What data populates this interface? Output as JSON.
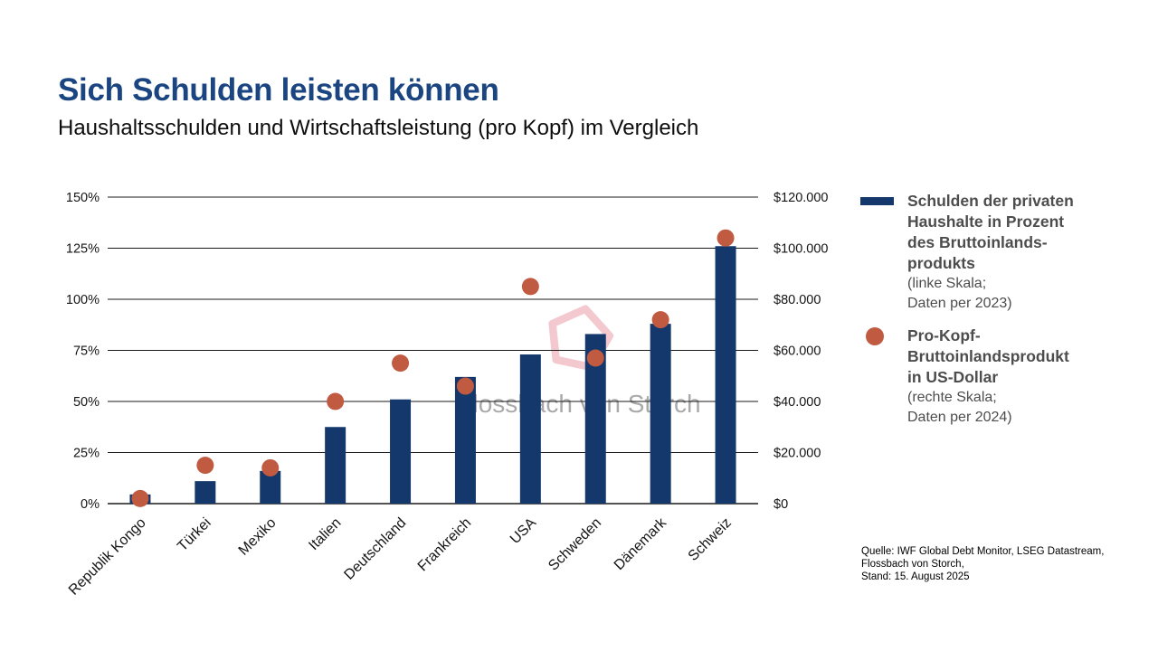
{
  "header": {
    "title": "Sich Schulden leisten können",
    "subtitle": "Haushaltsschulden und Wirtschaftsleistung (pro Kopf) im Vergleich"
  },
  "chart_data": {
    "type": "combo",
    "categories": [
      "Republik Kongo",
      "Türkei",
      "Mexiko",
      "Italien",
      "Deutschland",
      "Frankreich",
      "USA",
      "Schweden",
      "Dänemark",
      "Schweiz"
    ],
    "series": [
      {
        "name": "Schulden der privaten Haushalte in Prozent des Bruttoinlandsprodukts",
        "type": "bar",
        "axis": "left",
        "unit": "% des BIP",
        "values": [
          4.5,
          11,
          16,
          37.5,
          51,
          62,
          73,
          83,
          88,
          126
        ]
      },
      {
        "name": "Pro-Kopf-Bruttoinlandsprodukt in US-Dollar",
        "type": "scatter",
        "axis": "right",
        "unit": "USD",
        "values": [
          2000,
          15000,
          14000,
          40000,
          55000,
          46000,
          85000,
          57000,
          72000,
          104000
        ]
      }
    ],
    "left_axis": {
      "min": 0,
      "max": 150,
      "tick_values": [
        0,
        25,
        50,
        75,
        100,
        125,
        150
      ],
      "tick_labels": [
        "0%",
        "25%",
        "50%",
        "75%",
        "100%",
        "125%",
        "150%"
      ]
    },
    "right_axis": {
      "min": 0,
      "max": 120000,
      "tick_values": [
        0,
        20000,
        40000,
        60000,
        80000,
        100000,
        120000
      ],
      "tick_labels": [
        "$0",
        "$20.000",
        "$40.000",
        "$60.000",
        "$80.000",
        "$100.000",
        "$120.000"
      ]
    },
    "grid": true,
    "legend_position": "right",
    "x_label_rotation": -45
  },
  "legend": {
    "items": [
      {
        "swatch": "bar-swatch",
        "label_lines": [
          "Schulden der privaten",
          "Haushalte in Prozent",
          "des Bruttoinlands-",
          "produkts"
        ],
        "note_lines": [
          "(linke Skala;",
          "Daten per 2023)"
        ]
      },
      {
        "swatch": "dot-swatch",
        "label_lines": [
          "Pro-Kopf-",
          "Bruttoinlandsprodukt",
          "in US-Dollar"
        ],
        "note_lines": [
          "(rechte Skala;",
          "Daten per 2024)"
        ]
      }
    ]
  },
  "source": {
    "lines": [
      "Quelle: IWF Global Debt Monitor, LSEG Datastream,",
      "Flossbach von Storch,",
      "Stand: 15. August 2025"
    ]
  },
  "watermark": {
    "text": "Flossbach von Storch",
    "logo": "pentagon-logo"
  },
  "colors": {
    "bar": "#14386B",
    "dot": "#C05A41",
    "title": "#1A4581",
    "text": "#141414",
    "grid": "#1A1A1A",
    "legend_text": "#4D4D4D",
    "watermark_pink": "#F2C6CC",
    "watermark_gray": "#9B9B9B"
  }
}
